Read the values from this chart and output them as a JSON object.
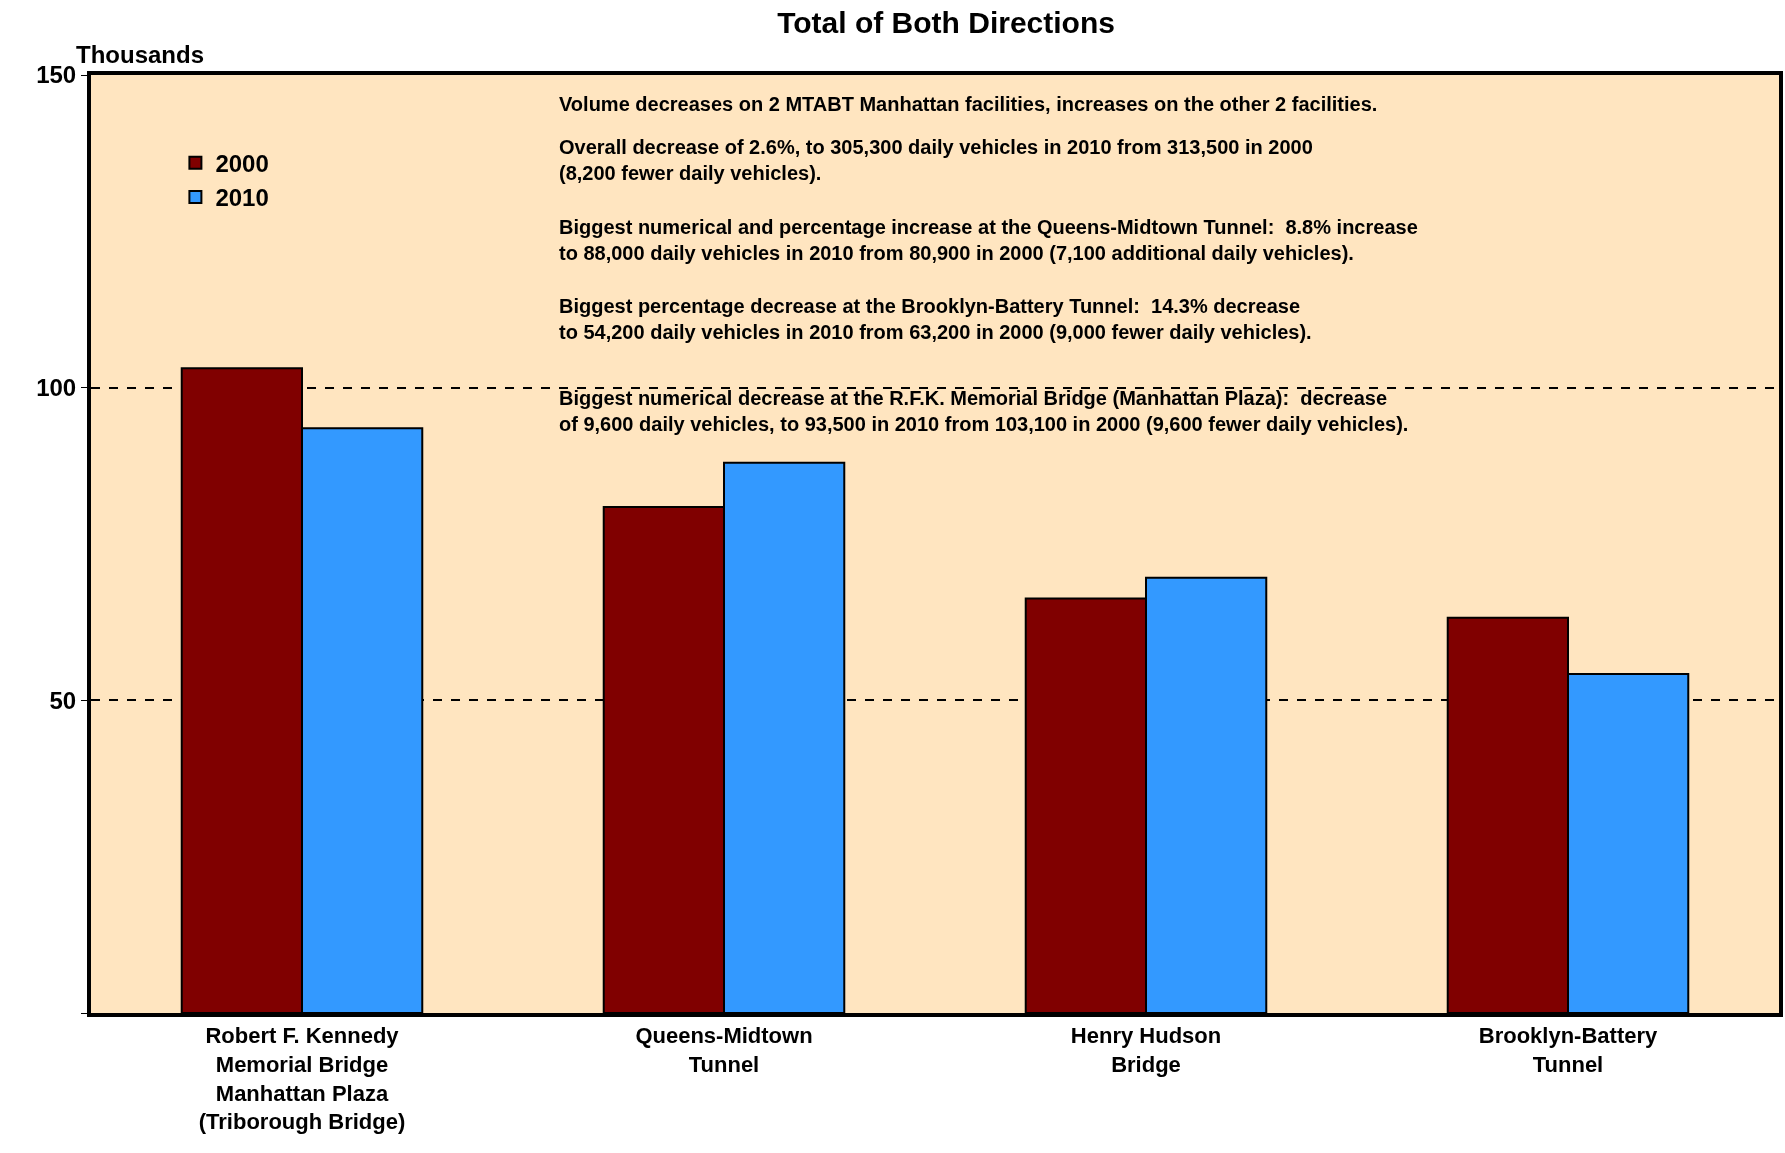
{
  "chart_data": {
    "type": "bar",
    "title": "Total of Both Directions",
    "ylabel": "Thousands",
    "categories": [
      "Robert F. Kennedy\nMemorial Bridge\nManhattan Plaza\n(Triborough Bridge)",
      "Queens-Midtown\nTunnel",
      "Henry Hudson\nBridge",
      "Brooklyn-Battery\nTunnel"
    ],
    "series": [
      {
        "name": "2000",
        "color": "#800000",
        "values": [
          103.1,
          80.9,
          66.3,
          63.2
        ]
      },
      {
        "name": "2010",
        "color": "#3399ff",
        "values": [
          93.5,
          88.0,
          69.6,
          54.2
        ]
      }
    ],
    "ylim": [
      0,
      150
    ],
    "yticks": [
      {
        "value": 0,
        "label": null
      },
      50,
      100,
      150
    ],
    "grid": "y",
    "line_style": "dashed",
    "legend": "top left",
    "annotations": [
      "Volume decreases on 2 MTABT Manhattan facilities, increases on the other 2 facilities.",
      "Overall decrease of 2.6%, to 305,300 daily vehicles in 2010 from 313,500 in 2000\n(8,200 fewer daily vehicles).",
      "Biggest numerical and percentage increase at the Queens-Midtown Tunnel:  8.8% increase\nto 88,000 daily vehicles in 2010 from 80,900 in 2000 (7,100 additional daily vehicles).",
      "Biggest percentage decrease at the Brooklyn-Battery Tunnel:  14.3% decrease\nto 54,200 daily vehicles in 2010 from 63,200 in 2000 (9,000 fewer daily vehicles).",
      "Biggest numerical decrease at the R.F.K. Memorial Bridge (Manhattan Plaza):  decrease\nof 9,600 daily vehicles, to 93,500 in 2010 from 103,100 in 2000 (9,600 fewer daily vehicles)."
    ]
  }
}
